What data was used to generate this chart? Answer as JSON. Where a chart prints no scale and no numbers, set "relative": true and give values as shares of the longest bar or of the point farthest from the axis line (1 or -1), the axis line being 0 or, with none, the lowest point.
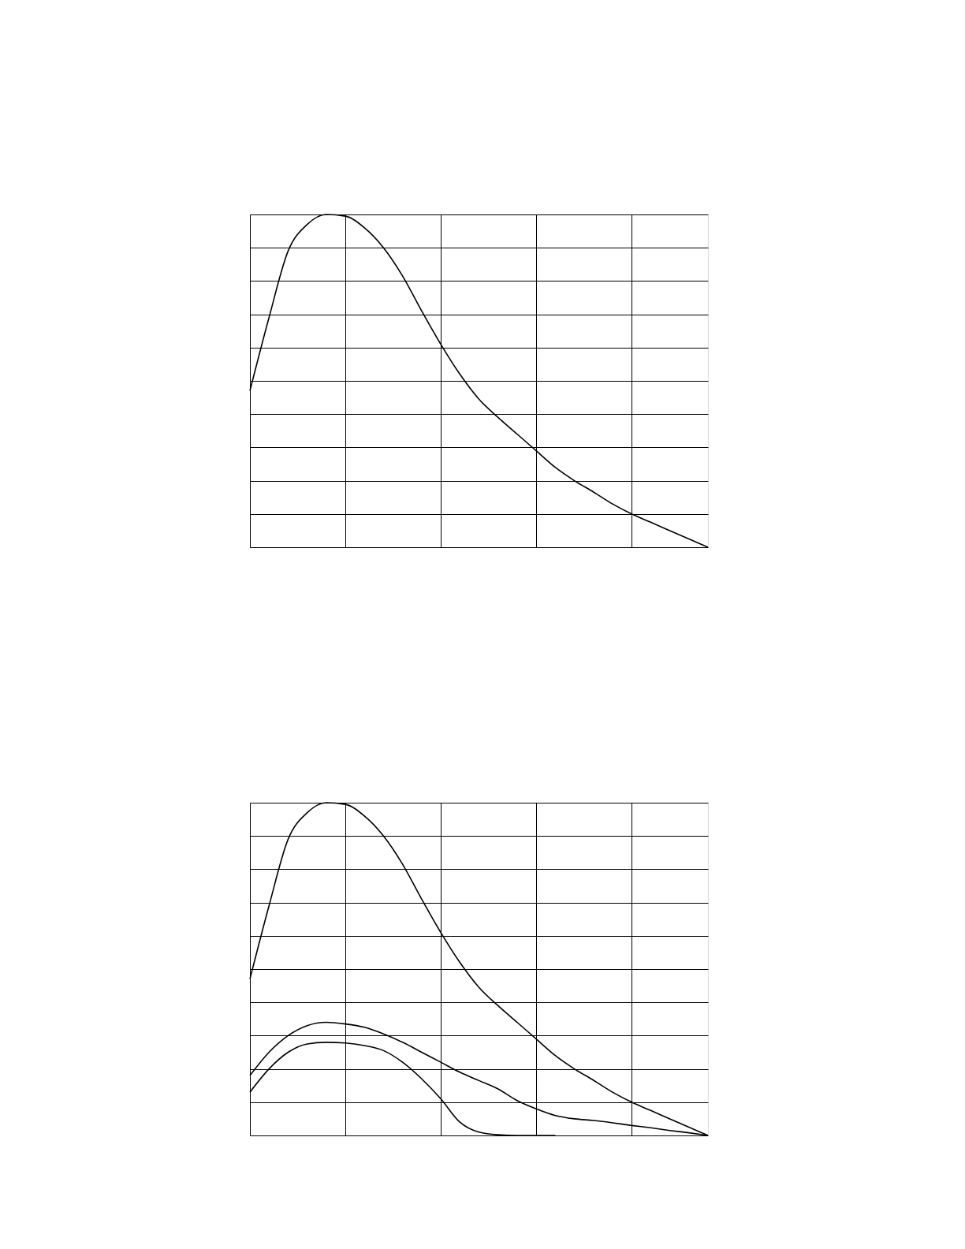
{
  "chart_data": [
    {
      "type": "line",
      "relative": true,
      "grid": true,
      "categories": [
        null,
        null,
        null,
        null,
        null,
        null,
        null,
        null,
        null,
        null,
        null,
        null,
        null,
        null,
        null,
        null,
        null,
        null,
        null,
        null,
        null,
        null,
        null,
        null,
        null
      ],
      "series": [
        {
          "color": "#000000",
          "values": [
            0.47,
            0.69,
            0.89,
            0.97,
            1.0,
            0.995,
            0.96,
            0.9,
            0.815,
            0.71,
            0.61,
            0.52,
            0.445,
            0.39,
            0.34,
            0.29,
            0.24,
            0.2,
            0.166,
            0.13,
            0.1,
            0.075,
            0.05,
            0.025,
            0
          ]
        }
      ]
    },
    {
      "type": "line",
      "relative": true,
      "grid": true,
      "categories": [
        null,
        null,
        null,
        null,
        null,
        null,
        null,
        null,
        null,
        null,
        null,
        null,
        null,
        null,
        null,
        null,
        null,
        null,
        null,
        null,
        null,
        null,
        null,
        null,
        null
      ],
      "series": [
        {
          "color": "#000000",
          "values": [
            0.47,
            0.69,
            0.89,
            0.97,
            1.0,
            0.995,
            0.96,
            0.9,
            0.815,
            0.71,
            0.61,
            0.52,
            0.445,
            0.39,
            0.34,
            0.29,
            0.24,
            0.2,
            0.166,
            0.13,
            0.1,
            0.075,
            0.05,
            0.025,
            0
          ]
        },
        {
          "color": "#000000",
          "values": [
            0.18,
            0.25,
            0.3,
            0.33,
            0.34,
            0.335,
            0.325,
            0.305,
            0.28,
            0.25,
            0.22,
            0.19,
            0.165,
            0.14,
            0.105,
            0.08,
            0.06,
            0.05,
            0.045,
            0.038,
            0.03,
            0.023,
            0.015,
            0.008,
            0
          ]
        },
        {
          "color": "#000000",
          "values": [
            0.13,
            0.2,
            0.25,
            0.275,
            0.28,
            0.278,
            0.27,
            0.255,
            0.22,
            0.17,
            0.11,
            0.04,
            0.01,
            0.002,
            0,
            0,
            0,
            null,
            null,
            null,
            null,
            null,
            null,
            null,
            null
          ]
        }
      ]
    }
  ]
}
